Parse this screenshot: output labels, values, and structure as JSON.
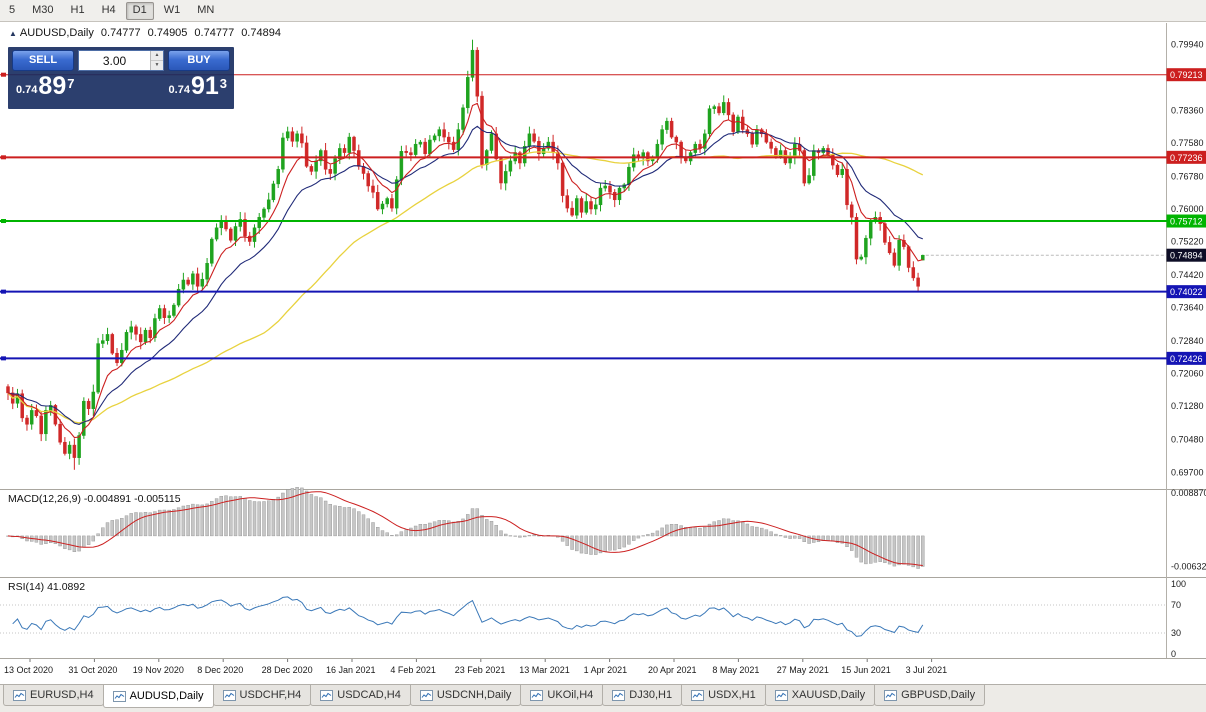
{
  "toolbar": {
    "timeframes": [
      {
        "label": "5",
        "active": false
      },
      {
        "label": "M30",
        "active": false
      },
      {
        "label": "H1",
        "active": false
      },
      {
        "label": "H4",
        "active": false
      },
      {
        "label": "D1",
        "active": true
      },
      {
        "label": "W1",
        "active": false
      },
      {
        "label": "MN",
        "active": false
      }
    ]
  },
  "chart": {
    "collapse_icon": "▲",
    "symbol_period": "AUDUSD,Daily",
    "ohlc": {
      "open": "0.74777",
      "high": "0.74905",
      "low": "0.74777",
      "close": "0.74894"
    }
  },
  "one_click": {
    "sell_label": "SELL",
    "buy_label": "BUY",
    "volume": "3.00",
    "spin_up_icon": "▲",
    "spin_down_icon": "▼",
    "bid": {
      "small": "0.74",
      "big": "89",
      "sup": "7"
    },
    "ask": {
      "small": "0.74",
      "big": "91",
      "sup": "3"
    }
  },
  "price_axis": {
    "ticks": [
      "0.79940",
      "0.78360",
      "0.77580",
      "0.76780",
      "0.76000",
      "0.75220",
      "0.74420",
      "0.73640",
      "0.72840",
      "0.72060",
      "0.71280",
      "0.70480",
      "0.69700"
    ]
  },
  "hlines": [
    {
      "label": "0.79213",
      "value": 0.79213,
      "color": "#cc1f1f",
      "width": 1
    },
    {
      "label": "0.77236",
      "value": 0.77236,
      "color": "#cc1f1f",
      "width": 2
    },
    {
      "label": "0.75712",
      "value": 0.75712,
      "color": "#00b400",
      "width": 2
    },
    {
      "label": "0.74022",
      "value": 0.74022,
      "color": "#1414b4",
      "width": 2
    },
    {
      "label": "0.72426",
      "value": 0.72426,
      "color": "#1414b4",
      "width": 2
    }
  ],
  "current_price": {
    "label": "0.74894",
    "value": 0.74894,
    "badge_color": "#0d0d26"
  },
  "indicators": {
    "macd": {
      "name": "MACD(12,26,9)",
      "value_main": "-0.004891",
      "value_signal": "-0.005115",
      "axis": [
        {
          "label": "0.008870",
          "value": 0.00887
        },
        {
          "label": "-0.006320",
          "value": -0.00632
        }
      ],
      "range": [
        -0.0085,
        0.0095
      ]
    },
    "rsi": {
      "name": "RSI(14)",
      "value": "41.0892",
      "axis": [
        {
          "label": "100",
          "value": 100
        },
        {
          "label": "70",
          "value": 70
        },
        {
          "label": "30",
          "value": 30
        },
        {
          "label": "0",
          "value": 0
        }
      ],
      "levels": [
        70,
        30
      ]
    }
  },
  "date_axis": {
    "labels": [
      "13 Oct 2020",
      "31 Oct 2020",
      "19 Nov 2020",
      "8 Dec 2020",
      "28 Dec 2020",
      "16 Jan 2021",
      "4 Feb 2021",
      "23 Feb 2021",
      "13 Mar 2021",
      "1 Apr 2021",
      "20 Apr 2021",
      "8 May 2021",
      "27 May 2021",
      "15 Jun 2021",
      "3 Jul 2021"
    ]
  },
  "tabbar": {
    "tabs": [
      {
        "label": "EURUSD,H4",
        "active": false
      },
      {
        "label": "AUDUSD,Daily",
        "active": true
      },
      {
        "label": "USDCHF,H4",
        "active": false
      },
      {
        "label": "USDCAD,H4",
        "active": false
      },
      {
        "label": "USDCNH,Daily",
        "active": false
      },
      {
        "label": "UKOil,H4",
        "active": false
      },
      {
        "label": "DJ30,H1",
        "active": false
      },
      {
        "label": "USDX,H1",
        "active": false
      },
      {
        "label": "XAUUSD,Daily",
        "active": false
      },
      {
        "label": "GBPUSD,Daily",
        "active": false
      }
    ]
  },
  "colors": {
    "candle_up": "#1fa31f",
    "candle_down": "#d02828",
    "ma_fast": "#cc2020",
    "ma_mid": "#202a78",
    "ma_slow": "#e8d23e",
    "macd_hist": "#c6c6c6",
    "macd_hist_border": "#8f8f8f",
    "macd_signal": "#cc2020",
    "rsi_line": "#3a78b8",
    "level_line": "#c4c4c4",
    "separator": "#a9a69f",
    "axis_text": "#1a1a1a"
  },
  "chart_data": {
    "type": "candlestick",
    "symbol": "AUDUSD",
    "period": "Daily",
    "ylim": [
      0.693,
      0.8045
    ],
    "last_ohlc": [
      0.74777,
      0.74905,
      0.74777,
      0.74894
    ],
    "ma_periods": {
      "fast_ema": 8,
      "mid_ema": 18,
      "slow_sma": 55
    },
    "macd_params": [
      12,
      26,
      9
    ],
    "rsi_period": 14,
    "wick_overrides": [
      {
        "index": 98,
        "high": 0.8005
      },
      {
        "index": 14,
        "low": 0.6976
      }
    ],
    "closes": [
      0.716,
      0.7135,
      0.7158,
      0.71,
      0.7085,
      0.7118,
      0.7105,
      0.7062,
      0.7118,
      0.713,
      0.7085,
      0.7042,
      0.7015,
      0.7035,
      0.7005,
      0.7058,
      0.714,
      0.7122,
      0.7162,
      0.7278,
      0.7285,
      0.73,
      0.7255,
      0.7232,
      0.7262,
      0.7305,
      0.7318,
      0.73,
      0.7282,
      0.731,
      0.7292,
      0.7338,
      0.7362,
      0.734,
      0.7345,
      0.737,
      0.7408,
      0.743,
      0.742,
      0.7445,
      0.7415,
      0.7432,
      0.747,
      0.7528,
      0.7555,
      0.757,
      0.7552,
      0.7525,
      0.7558,
      0.7575,
      0.7535,
      0.7522,
      0.7555,
      0.758,
      0.76,
      0.7622,
      0.766,
      0.7695,
      0.777,
      0.7785,
      0.7762,
      0.778,
      0.7758,
      0.7702,
      0.769,
      0.7715,
      0.774,
      0.7695,
      0.7685,
      0.772,
      0.7745,
      0.7735,
      0.7772,
      0.774,
      0.7702,
      0.7685,
      0.7655,
      0.764,
      0.76,
      0.7612,
      0.7625,
      0.7602,
      0.767,
      0.7738,
      0.7735,
      0.773,
      0.7755,
      0.776,
      0.7732,
      0.7765,
      0.7775,
      0.779,
      0.7772,
      0.776,
      0.7742,
      0.779,
      0.7842,
      0.7915,
      0.798,
      0.787,
      0.7706,
      0.774,
      0.778,
      0.772,
      0.7662,
      0.769,
      0.7715,
      0.7735,
      0.771,
      0.775,
      0.778,
      0.7762,
      0.7732,
      0.7745,
      0.776,
      0.7735,
      0.771,
      0.7632,
      0.7602,
      0.7585,
      0.7625,
      0.7592,
      0.7618,
      0.76,
      0.761,
      0.765,
      0.7655,
      0.764,
      0.7622,
      0.765,
      0.7658,
      0.77,
      0.773,
      0.7722,
      0.7735,
      0.7715,
      0.7725,
      0.7755,
      0.779,
      0.781,
      0.7772,
      0.776,
      0.7725,
      0.7715,
      0.7735,
      0.7755,
      0.7745,
      0.778,
      0.784,
      0.7845,
      0.783,
      0.7855,
      0.7825,
      0.7785,
      0.782,
      0.779,
      0.778,
      0.7755,
      0.779,
      0.778,
      0.776,
      0.7745,
      0.7725,
      0.774,
      0.771,
      0.7725,
      0.7755,
      0.774,
      0.7662,
      0.768,
      0.774,
      0.7735,
      0.7745,
      0.773,
      0.7705,
      0.7682,
      0.7695,
      0.761,
      0.758,
      0.748,
      0.7485,
      0.753,
      0.757,
      0.758,
      0.7565,
      0.752,
      0.7495,
      0.7465,
      0.7525,
      0.751,
      0.746,
      0.7435,
      0.7415,
      0.74894
    ]
  }
}
